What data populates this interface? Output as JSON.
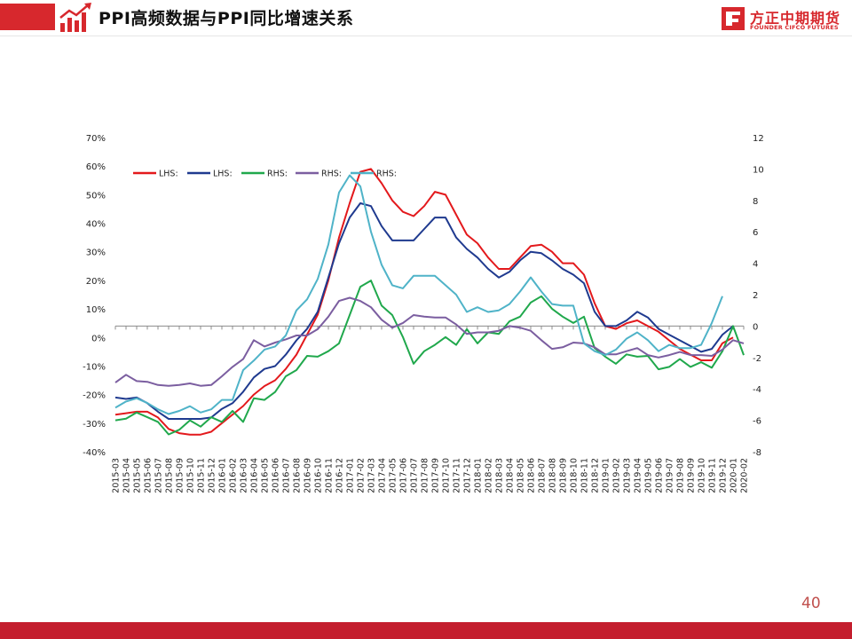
{
  "header": {
    "title": "PPI高频数据与PPI同比增速关系"
  },
  "logo": {
    "cn": "方正中期期货",
    "en": "FOUNDER CIFCO FUTURES"
  },
  "page_number": "40",
  "colors": {
    "accent": "#d7282d",
    "footer": "#c41e2e",
    "page_number": "#c0504d"
  },
  "chart_data": {
    "type": "line",
    "title": "",
    "xlabel": "",
    "ylabel_left": "",
    "ylabel_right": "",
    "legend_position": "top-left",
    "grid": false,
    "left_axis": {
      "min": -40,
      "max": 70,
      "step": 10,
      "unit": "%",
      "tick_labels": [
        "70%",
        "60%",
        "50%",
        "40%",
        "30%",
        "20%",
        "10%",
        "0%",
        "-10%",
        "-20%",
        "-30%",
        "-40%"
      ]
    },
    "right_axis": {
      "min": -8,
      "max": 12,
      "step": 2,
      "tick_labels": [
        "12",
        "10",
        "8",
        "6",
        "4",
        "2",
        "0",
        "-2",
        "-4",
        "-6",
        "-8"
      ]
    },
    "reference_line": {
      "axis": "right",
      "value": 0
    },
    "categories": [
      "2015-03",
      "2015-04",
      "2015-05",
      "2015-06",
      "2015-07",
      "2015-08",
      "2015-09",
      "2015-10",
      "2015-11",
      "2015-12",
      "2016-01",
      "2016-02",
      "2016-03",
      "2016-04",
      "2016-05",
      "2016-06",
      "2016-07",
      "2016-08",
      "2016-09",
      "2016-10",
      "2016-11",
      "2016-12",
      "2017-01",
      "2017-02",
      "2017-03",
      "2017-04",
      "2017-05",
      "2017-06",
      "2017-07",
      "2017-08",
      "2017-09",
      "2017-10",
      "2017-11",
      "2017-12",
      "2018-01",
      "2018-02",
      "2018-03",
      "2018-04",
      "2018-05",
      "2018-06",
      "2018-07",
      "2018-08",
      "2018-09",
      "2018-10",
      "2018-11",
      "2018-12",
      "2019-01",
      "2019-02",
      "2019-03",
      "2019-04",
      "2019-05",
      "2019-06",
      "2019-07",
      "2019-08",
      "2019-09",
      "2019-10",
      "2019-11",
      "2019-12",
      "2020-01",
      "2020-02"
    ],
    "series": [
      {
        "name": "LHS:",
        "axis": "left",
        "color": "#e3191c",
        "values": [
          -27,
          -26.5,
          -26,
          -26,
          -28,
          -32,
          -33.5,
          -34,
          -34,
          -33,
          -30,
          -27,
          -24,
          -20,
          -17,
          -15,
          -11,
          -6,
          1,
          8,
          20,
          35,
          47,
          58,
          59,
          54,
          48,
          44,
          42.5,
          46,
          51,
          50,
          43,
          36,
          33,
          28,
          24,
          24,
          28,
          32,
          32.5,
          30,
          26,
          26,
          22,
          12,
          4,
          3,
          5,
          6,
          4,
          2,
          -1,
          -4,
          -6,
          -8,
          -8,
          -2,
          0,
          null
        ]
      },
      {
        "name": "LHS:",
        "axis": "left",
        "color": "#1f3a8f",
        "values": [
          -21,
          -21.5,
          -21,
          -23,
          -26,
          -28.5,
          -28.5,
          -28.5,
          -28.5,
          -28,
          -25,
          -23,
          -19,
          -14,
          -11,
          -10,
          -6,
          -1,
          3,
          9,
          21,
          33,
          42,
          47,
          46,
          39,
          34,
          34,
          34,
          38,
          42,
          42,
          35,
          31,
          28,
          24,
          21,
          23,
          27,
          30,
          29.5,
          27,
          24,
          22,
          19,
          9,
          4,
          4,
          6,
          9,
          7,
          3,
          1,
          -1,
          -3,
          -5,
          -4,
          1,
          4,
          null
        ]
      },
      {
        "name": "RHS:",
        "axis": "right",
        "color": "#20a84c",
        "values": [
          -6,
          -5.9,
          -5.5,
          -5.8,
          -6.1,
          -6.9,
          -6.6,
          -6,
          -6.4,
          -5.8,
          -6.1,
          -5.4,
          -6.1,
          -4.6,
          -4.7,
          -4.2,
          -3.2,
          -2.8,
          -1.9,
          -1.95,
          -1.6,
          -1.1,
          0.7,
          2.5,
          2.9,
          1.3,
          0.7,
          -0.7,
          -2.4,
          -1.6,
          -1.2,
          -0.7,
          -1.2,
          -0.2,
          -1.1,
          -0.4,
          -0.5,
          0.3,
          0.6,
          1.5,
          1.9,
          1.1,
          0.6,
          0.2,
          0.6,
          -1.4,
          -1.95,
          -2.4,
          -1.8,
          -1.95,
          -1.9,
          -2.75,
          -2.6,
          -2.1,
          -2.6,
          -2.3,
          -2.65,
          -1.6,
          0,
          -1.85
        ]
      },
      {
        "name": "RHS:",
        "axis": "right",
        "color": "#7b5ea0",
        "values": [
          -3.6,
          -3.1,
          -3.5,
          -3.55,
          -3.75,
          -3.8,
          -3.75,
          -3.65,
          -3.8,
          -3.75,
          -3.2,
          -2.6,
          -2.1,
          -0.9,
          -1.3,
          -1.05,
          -0.85,
          -0.6,
          -0.6,
          -0.2,
          0.6,
          1.6,
          1.8,
          1.6,
          1.2,
          0.4,
          -0.1,
          0.2,
          0.7,
          0.6,
          0.55,
          0.55,
          0.1,
          -0.5,
          -0.4,
          -0.4,
          -0.3,
          0,
          -0.1,
          -0.3,
          -0.9,
          -1.45,
          -1.35,
          -1.05,
          -1.1,
          -1.35,
          -1.8,
          -1.8,
          -1.6,
          -1.4,
          -1.85,
          -2,
          -1.85,
          -1.65,
          -1.85,
          -1.85,
          -1.9,
          -1.5,
          -0.9,
          -1.1
        ]
      },
      {
        "name": "RHS:",
        "axis": "right",
        "color": "#4fb3c8",
        "values": [
          -5.2,
          -4.8,
          -4.6,
          -4.9,
          -5.3,
          -5.6,
          -5.4,
          -5.1,
          -5.5,
          -5.3,
          -4.7,
          -4.7,
          -2.8,
          -2.2,
          -1.5,
          -1.3,
          -0.6,
          1,
          1.7,
          3,
          5.2,
          8.5,
          9.6,
          8.9,
          6,
          3.9,
          2.6,
          2.4,
          3.2,
          3.2,
          3.2,
          2.6,
          2,
          0.9,
          1.2,
          0.9,
          1,
          1.4,
          2.2,
          3.1,
          2.2,
          1.4,
          1.3,
          1.3,
          -1.1,
          -1.6,
          -1.85,
          -1.5,
          -0.8,
          -0.4,
          -0.9,
          -1.6,
          -1.2,
          -1.4,
          -1.4,
          -1.2,
          0.2,
          1.9,
          null,
          null
        ]
      }
    ]
  }
}
